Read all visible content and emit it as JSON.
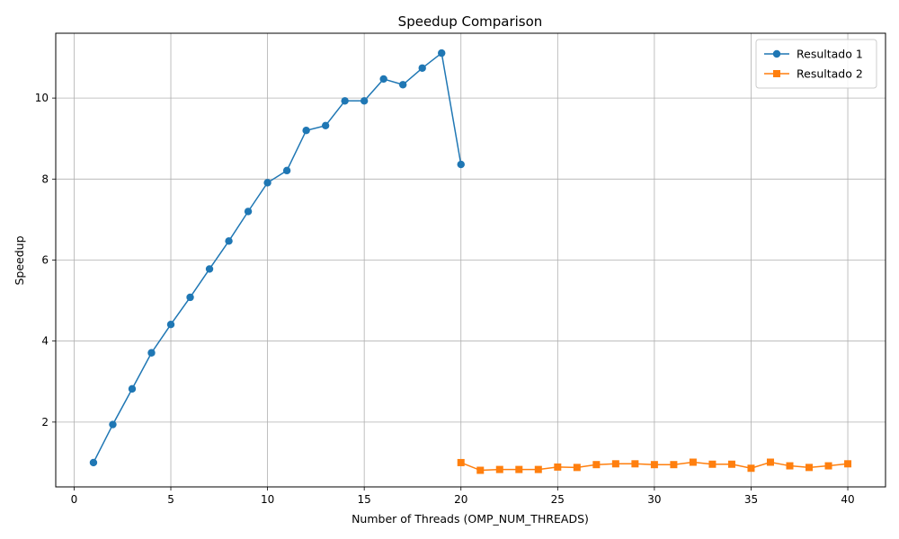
{
  "chart_data": {
    "type": "line",
    "title": "Speedup Comparison",
    "xlabel": "Number of Threads (OMP_NUM_THREADS)",
    "ylabel": "Speedup",
    "xlim": [
      -0.95,
      41.95
    ],
    "ylim": [
      0.4,
      11.6
    ],
    "xticks": [
      0,
      5,
      10,
      15,
      20,
      25,
      30,
      35,
      40
    ],
    "yticks": [
      2,
      4,
      6,
      8,
      10
    ],
    "grid": true,
    "legend_position": "top-right",
    "series": [
      {
        "name": "Resultado 1",
        "color": "#1f77b4",
        "marker": "circle",
        "x": [
          1,
          2,
          3,
          4,
          5,
          6,
          7,
          8,
          9,
          10,
          11,
          12,
          13,
          14,
          15,
          16,
          17,
          18,
          19,
          20
        ],
        "y": [
          1.0,
          1.94,
          2.82,
          3.71,
          4.41,
          5.08,
          5.78,
          6.47,
          7.2,
          7.91,
          8.21,
          9.2,
          9.32,
          9.93,
          9.93,
          10.47,
          10.33,
          10.74,
          11.11,
          8.36
        ]
      },
      {
        "name": "Resultado 2",
        "color": "#ff7f0e",
        "marker": "square",
        "x": [
          20,
          21,
          22,
          23,
          24,
          25,
          26,
          27,
          28,
          29,
          30,
          31,
          32,
          33,
          34,
          35,
          36,
          37,
          38,
          39,
          40
        ],
        "y": [
          1.0,
          0.81,
          0.83,
          0.83,
          0.83,
          0.89,
          0.88,
          0.95,
          0.97,
          0.97,
          0.95,
          0.95,
          1.01,
          0.96,
          0.96,
          0.86,
          1.01,
          0.92,
          0.88,
          0.92,
          0.97
        ]
      }
    ]
  }
}
